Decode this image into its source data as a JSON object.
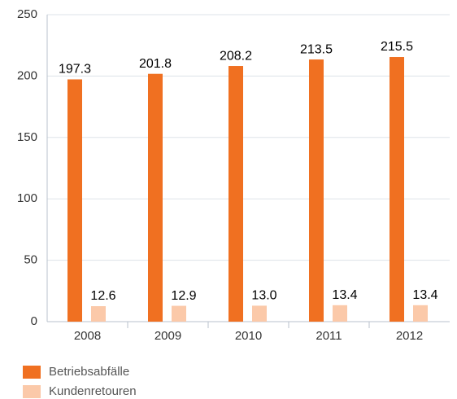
{
  "chart_data": {
    "type": "bar",
    "categories": [
      "2008",
      "2009",
      "2010",
      "2011",
      "2012"
    ],
    "series": [
      {
        "name": "Betriebsabfälle",
        "color": "#f07021",
        "values": [
          197.3,
          201.8,
          208.2,
          213.5,
          215.5
        ]
      },
      {
        "name": "Kundenretouren",
        "color": "#fbc9a9",
        "values": [
          12.6,
          12.9,
          13.0,
          13.4,
          13.4
        ],
        "value_labels": [
          "12.6",
          "12.9",
          "13.0",
          "13.4",
          "13.4"
        ]
      }
    ],
    "ylim": [
      0,
      250
    ],
    "yticks": [
      0,
      50,
      100,
      150,
      200,
      250
    ],
    "grid": true,
    "legend": "bottom"
  }
}
